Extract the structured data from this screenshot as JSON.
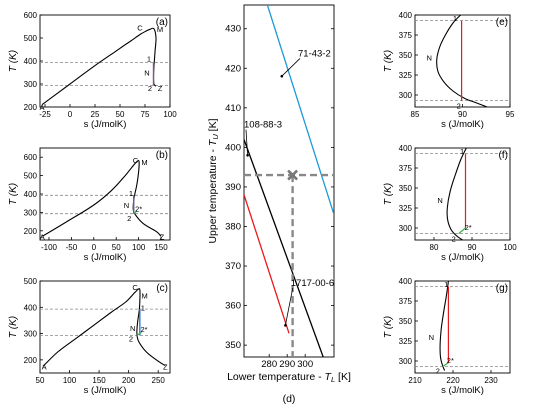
{
  "figure": {
    "panel_d_caption": "(d)"
  },
  "chart_data": [
    {
      "id": "a",
      "letter": "(a)",
      "type": "line",
      "xlabel": "s (J/molK)",
      "ylabel": "T (K)",
      "xlim": [
        -30,
        100
      ],
      "ylim": [
        200,
        600
      ],
      "xticks": [
        "-25",
        "0",
        "25",
        "50",
        "75",
        "100"
      ],
      "xtick_values": [
        -25,
        0,
        25,
        50,
        75,
        100
      ],
      "yticks": [
        "200",
        "300",
        "400",
        "500",
        "600"
      ],
      "ytick_values": [
        200,
        300,
        400,
        500,
        600
      ],
      "dashed_levels": [
        393,
        293
      ],
      "series": [
        {
          "role": "saturation",
          "color": "#000000",
          "x": [
            -28,
            0,
            25,
            45,
            60,
            70,
            76,
            80,
            84,
            86,
            85,
            84,
            83.5,
            84,
            86
          ],
          "y": [
            210,
            300,
            380,
            440,
            485,
            515,
            530,
            538,
            540,
            500,
            440,
            380,
            330,
            300,
            290
          ]
        },
        {
          "role": "cycle-heating",
          "color": "#e8191c",
          "x": [
            83.5,
            83.5
          ],
          "y": [
            293,
            393
          ]
        },
        {
          "role": "cycle-expansion",
          "color": "#2a6fd6",
          "x": [
            83.5,
            83.5
          ],
          "y": [
            393,
            293
          ]
        }
      ],
      "point_labels": [
        {
          "text": "A",
          "x": -28,
          "y": 200
        },
        {
          "text": "C",
          "x": 70,
          "y": 545
        },
        {
          "text": "M",
          "x": 90,
          "y": 540
        },
        {
          "text": "1",
          "x": 79,
          "y": 410
        },
        {
          "text": "N",
          "x": 77,
          "y": 350
        },
        {
          "text": "2",
          "x": 80,
          "y": 283
        },
        {
          "text": "Z",
          "x": 90,
          "y": 283
        }
      ]
    },
    {
      "id": "b",
      "letter": "(b)",
      "type": "line",
      "xlabel": "s (J/molK)",
      "ylabel": "T (K)",
      "xlim": [
        -120,
        170
      ],
      "ylim": [
        150,
        650
      ],
      "xticks": [
        "-100",
        "-50",
        "0",
        "50",
        "100",
        "150"
      ],
      "xtick_values": [
        -100,
        -50,
        0,
        50,
        100,
        150
      ],
      "yticks": [
        "200",
        "300",
        "400",
        "500",
        "600"
      ],
      "ytick_values": [
        200,
        300,
        400,
        500,
        600
      ],
      "dashed_levels": [
        393,
        293
      ],
      "series": [
        {
          "role": "saturation",
          "color": "#000000",
          "x": [
            -115,
            -60,
            0,
            40,
            70,
            90,
            98,
            101,
            100,
            96,
            90,
            88,
            92,
            110,
            140,
            150
          ],
          "y": [
            170,
            250,
            340,
            420,
            500,
            560,
            580,
            575,
            520,
            450,
            380,
            320,
            290,
            240,
            195,
            170
          ]
        },
        {
          "role": "cycle-heating",
          "color": "#e8191c",
          "x": [
            89,
            89
          ],
          "y": [
            293,
            393
          ]
        },
        {
          "role": "cycle-expansion",
          "color": "#2a6fd6",
          "x": [
            89,
            89
          ],
          "y": [
            393,
            293
          ]
        },
        {
          "role": "compression",
          "color": "#36b04a",
          "x": [
            89,
            97
          ],
          "y": [
            293,
            310
          ]
        }
      ],
      "point_labels": [
        {
          "text": "A",
          "x": -115,
          "y": 168
        },
        {
          "text": "C",
          "x": 93,
          "y": 585
        },
        {
          "text": "M",
          "x": 113,
          "y": 575
        },
        {
          "text": "1",
          "x": 83,
          "y": 405
        },
        {
          "text": "N",
          "x": 73,
          "y": 340
        },
        {
          "text": "2*",
          "x": 100,
          "y": 320
        },
        {
          "text": "2",
          "x": 79,
          "y": 270
        },
        {
          "text": "Z",
          "x": 152,
          "y": 168
        }
      ]
    },
    {
      "id": "c",
      "letter": "(c)",
      "type": "line",
      "xlabel": "s (J/molK)",
      "ylabel": "T (K)",
      "xlim": [
        50,
        270
      ],
      "ylim": [
        150,
        500
      ],
      "xticks": [
        "50",
        "100",
        "150",
        "200",
        "250"
      ],
      "xtick_values": [
        50,
        100,
        150,
        200,
        250
      ],
      "yticks": [
        "200",
        "300",
        "400",
        "500"
      ],
      "ytick_values": [
        200,
        300,
        400,
        500
      ],
      "dashed_levels": [
        393,
        293
      ],
      "series": [
        {
          "role": "saturation",
          "color": "#000000",
          "x": [
            55,
            80,
            110,
            140,
            170,
            195,
            210,
            217,
            219,
            219,
            218,
            215,
            214,
            217,
            230,
            250,
            262
          ],
          "y": [
            175,
            230,
            280,
            330,
            380,
            420,
            455,
            470,
            465,
            430,
            390,
            340,
            300,
            270,
            230,
            195,
            178
          ]
        },
        {
          "role": "cycle-heating",
          "color": "#e8191c",
          "x": [
            219,
            219
          ],
          "y": [
            293,
            393
          ]
        },
        {
          "role": "cycle-expansion",
          "color": "#2a6fd6",
          "x": [
            219,
            219
          ],
          "y": [
            393,
            293
          ]
        },
        {
          "role": "compression",
          "color": "#36b04a",
          "x": [
            214,
            222
          ],
          "y": [
            293,
            305
          ]
        }
      ],
      "point_labels": [
        {
          "text": "A",
          "x": 57,
          "y": 175
        },
        {
          "text": "C",
          "x": 211,
          "y": 478
        },
        {
          "text": "M",
          "x": 227,
          "y": 445
        },
        {
          "text": "1",
          "x": 224,
          "y": 400
        },
        {
          "text": "N",
          "x": 207,
          "y": 322
        },
        {
          "text": "2*",
          "x": 226,
          "y": 318
        },
        {
          "text": "2",
          "x": 204,
          "y": 282
        },
        {
          "text": "Z",
          "x": 262,
          "y": 175
        }
      ]
    },
    {
      "id": "d",
      "type": "line",
      "xlabel_prefix": "Lower temperature - ",
      "xlabel_sym": "T",
      "xlabel_sub": "L",
      "xlabel_unit": " [K]",
      "ylabel_prefix": "Upper temperature - ",
      "ylabel_sym": "T",
      "ylabel_sub": "U",
      "ylabel_unit": " [K]",
      "xlim": [
        266,
        316
      ],
      "ylim": [
        347,
        436
      ],
      "xticks": [
        "280",
        "290",
        "300"
      ],
      "xtick_values": [
        280,
        290,
        300
      ],
      "yticks": [
        "350",
        "360",
        "370",
        "380",
        "390",
        "400",
        "410",
        "420",
        "430"
      ],
      "ytick_values": [
        350,
        360,
        370,
        380,
        390,
        400,
        410,
        420,
        430
      ],
      "marker": {
        "x": 293,
        "y": 393,
        "symbol": "x"
      },
      "guides": {
        "h": 393,
        "v": 293
      },
      "series": [
        {
          "name": "71-43-2",
          "color": "#1c9ad6",
          "x": [
            279,
            316
          ],
          "y": [
            436,
            383
          ]
        },
        {
          "name": "108-88-3",
          "color": "#000000",
          "x": [
            266,
            310
          ],
          "y": [
            402,
            347
          ]
        },
        {
          "name": "1717-00-6",
          "color": "#e8191c",
          "x": [
            266,
            291
          ],
          "y": [
            388,
            353
          ]
        }
      ],
      "curve_labels": [
        {
          "text": "71-43-2",
          "at": [
            296,
            423
          ],
          "arrow_to": [
            287,
            418
          ]
        },
        {
          "text": "108-88-3",
          "at": [
            266,
            405
          ],
          "arrow_to": [
            268,
            398
          ]
        },
        {
          "text": "1717-00-6",
          "at": [
            292,
            365
          ],
          "arrow_to": [
            289,
            355
          ]
        }
      ]
    },
    {
      "id": "e",
      "letter": "(e)",
      "type": "line",
      "xlabel": "s (J/molK)",
      "ylabel": "T (K)",
      "xlim": [
        85,
        95
      ],
      "ylim": [
        285,
        400
      ],
      "xticks": [
        "85",
        "90",
        "95"
      ],
      "xtick_values": [
        85,
        90,
        95
      ],
      "yticks": [
        "300",
        "325",
        "350",
        "375",
        "400"
      ],
      "ytick_values": [
        300,
        325,
        350,
        375,
        400
      ],
      "dashed_levels": [
        393,
        293
      ],
      "series": [
        {
          "role": "saturation",
          "color": "#000000",
          "x": [
            89.8,
            89.0,
            88.2,
            87.6,
            87.3,
            87.4,
            88.0,
            89.0,
            90.2,
            91.5,
            92.6
          ],
          "y": [
            400,
            390,
            375,
            360,
            345,
            330,
            317,
            305,
            296,
            290,
            285
          ]
        },
        {
          "role": "cycle-heating",
          "color": "#e8191c",
          "x": [
            89.9,
            89.9
          ],
          "y": [
            293,
            393
          ]
        }
      ],
      "point_labels": [
        {
          "text": "1",
          "x": 89.2,
          "y": 396
        },
        {
          "text": "N",
          "x": 86.5,
          "y": 347
        },
        {
          "text": "2",
          "x": 89.6,
          "y": 287
        }
      ]
    },
    {
      "id": "f",
      "letter": "(f)",
      "type": "line",
      "xlabel": "s (J/molK)",
      "ylabel": "T (K)",
      "xlim": [
        75,
        100
      ],
      "ylim": [
        285,
        400
      ],
      "xticks": [
        "80",
        "90",
        "100"
      ],
      "xtick_values": [
        80,
        90,
        100
      ],
      "yticks": [
        "300",
        "325",
        "350",
        "375",
        "400"
      ],
      "ytick_values": [
        300,
        325,
        350,
        375,
        400
      ],
      "dashed_levels": [
        393,
        293
      ],
      "series": [
        {
          "role": "saturation",
          "color": "#000000",
          "x": [
            88.5,
            87.0,
            85.5,
            84.2,
            83.5,
            83.6,
            84.5,
            86.0,
            87.5
          ],
          "y": [
            400,
            385,
            365,
            345,
            325,
            310,
            298,
            290,
            285
          ]
        },
        {
          "role": "cycle-heating",
          "color": "#e8191c",
          "x": [
            88.3,
            88.3
          ],
          "y": [
            300,
            393
          ]
        },
        {
          "role": "compression",
          "color": "#36b04a",
          "x": [
            86.5,
            88.3
          ],
          "y": [
            293,
            300
          ]
        }
      ],
      "point_labels": [
        {
          "text": "1",
          "x": 87.4,
          "y": 396
        },
        {
          "text": "N",
          "x": 81.6,
          "y": 335
        },
        {
          "text": "2*",
          "x": 89.0,
          "y": 301
        },
        {
          "text": "2",
          "x": 85.2,
          "y": 287
        }
      ]
    },
    {
      "id": "g",
      "letter": "(g)",
      "type": "line",
      "xlabel": "s (J/molK)",
      "ylabel": "T (K)",
      "xlim": [
        210,
        235
      ],
      "ylim": [
        285,
        400
      ],
      "xticks": [
        "210",
        "220",
        "230"
      ],
      "xtick_values": [
        210,
        220,
        230
      ],
      "yticks": [
        "300",
        "325",
        "350",
        "375",
        "400"
      ],
      "ytick_values": [
        300,
        325,
        350,
        375,
        400
      ],
      "dashed_levels": [
        393,
        293
      ],
      "series": [
        {
          "role": "saturation",
          "color": "#000000",
          "x": [
            218.8,
            218.2,
            217.5,
            216.9,
            216.6,
            216.7,
            217.2,
            217.8
          ],
          "y": [
            400,
            380,
            360,
            340,
            320,
            305,
            295,
            288
          ]
        },
        {
          "role": "cycle-heating",
          "color": "#e8191c",
          "x": [
            218.8,
            218.8
          ],
          "y": [
            298,
            393
          ]
        },
        {
          "role": "compression",
          "color": "#36b04a",
          "x": [
            217.3,
            218.8
          ],
          "y": [
            293,
            298
          ]
        }
      ],
      "point_labels": [
        {
          "text": "1",
          "x": 218.2,
          "y": 396
        },
        {
          "text": "N",
          "x": 214.3,
          "y": 330
        },
        {
          "text": "2*",
          "x": 219.3,
          "y": 301
        },
        {
          "text": "2",
          "x": 216.0,
          "y": 288
        }
      ]
    }
  ]
}
